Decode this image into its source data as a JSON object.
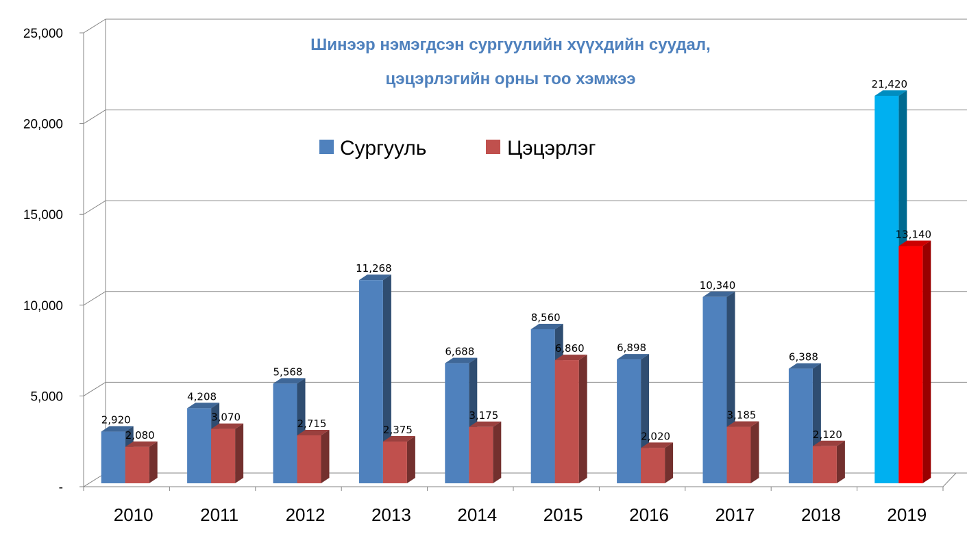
{
  "chart_data": {
    "type": "bar",
    "title_lines": [
      "Шинээр нэмэгдсэн сургуулийн хүүхдийн суудал,",
      "цэцэрлэгийн орны тоо хэмжээ"
    ],
    "categories": [
      "2010",
      "2011",
      "2012",
      "2013",
      "2014",
      "2015",
      "2016",
      "2017",
      "2018",
      "2019"
    ],
    "series": [
      {
        "name": "Сургууль",
        "values": [
          2920,
          4208,
          5568,
          11268,
          6688,
          8560,
          6898,
          10340,
          6388,
          21420
        ],
        "labels": [
          "2,920",
          "4,208",
          "5,568",
          "11,268",
          "6,688",
          "8,560",
          "6,898",
          "10,340",
          "6,388",
          "21,420"
        ],
        "color": "#4f81bd",
        "highlight_color": "#00b0f0"
      },
      {
        "name": "Цэцэрлэг",
        "values": [
          2080,
          3070,
          2715,
          2375,
          3175,
          6860,
          2020,
          3185,
          2120,
          13140
        ],
        "labels": [
          "2,080",
          "3,070",
          "2,715",
          "2,375",
          "3,175",
          "6,860",
          "2,020",
          "3,185",
          "2,120",
          "13,140"
        ],
        "color": "#c0504d",
        "highlight_color": "#ff0000"
      }
    ],
    "highlight_category": "2019",
    "ylim": [
      0,
      25000
    ],
    "yticks": [
      0,
      5000,
      10000,
      15000,
      20000,
      25000
    ],
    "ytick_labels": [
      "-",
      "5,000",
      "10,000",
      "15,000",
      "20,000",
      "25,000"
    ],
    "xlabel": "",
    "ylabel": "",
    "grid": true,
    "legend_position": "top-center",
    "style": "3d-clustered-column"
  }
}
